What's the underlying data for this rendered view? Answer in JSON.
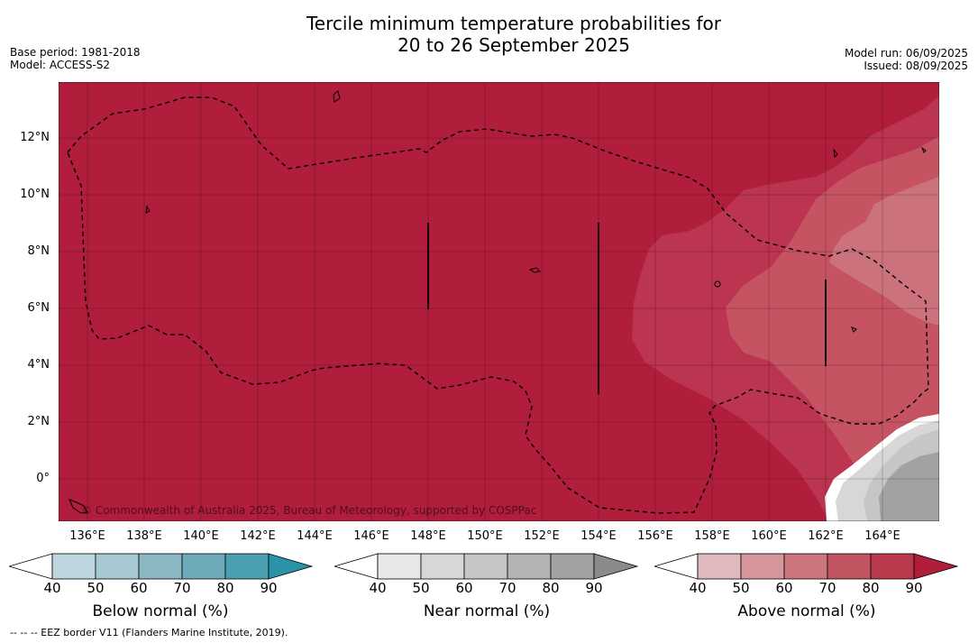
{
  "title_line1": "Tercile minimum temperature probabilities for",
  "title_line2": "20 to 26 September 2025",
  "meta_left": {
    "base_period": "Base period: 1981-2018",
    "model": "Model: ACCESS-S2"
  },
  "meta_right": {
    "model_run": "Model run: 06/09/2025",
    "issued": "Issued: 08/09/2025"
  },
  "map": {
    "lat_labels": [
      "12°N",
      "10°N",
      "8°N",
      "6°N",
      "4°N",
      "2°N",
      "0°"
    ],
    "lon_labels": [
      "136°E",
      "138°E",
      "140°E",
      "142°E",
      "144°E",
      "146°E",
      "148°E",
      "150°E",
      "152°E",
      "154°E",
      "156°E",
      "158°E",
      "160°E",
      "162°E",
      "164°E"
    ],
    "copyright": "© Commonwealth of Australia 2025, Bureau of Meteorology, supported by COSPPac",
    "colors": {
      "above_90": "#b01e3c",
      "above_80": "#bb3450",
      "above_70": "#c55362",
      "above_60": "#cc727c"
    }
  },
  "legends": [
    {
      "title": "Below normal (%)",
      "ticks": [
        "40",
        "50",
        "60",
        "70",
        "80",
        "90"
      ],
      "colors": [
        "#bed6de",
        "#a6c9d1",
        "#8cb8c4",
        "#6eaab9",
        "#4a9fb0",
        "#2b93a8"
      ]
    },
    {
      "title": "Near normal (%)",
      "ticks": [
        "40",
        "50",
        "60",
        "70",
        "80",
        "90"
      ],
      "colors": [
        "#e7e7e7",
        "#d7d7d7",
        "#c6c6c6",
        "#b3b3b3",
        "#a2a2a2",
        "#8a8a8a"
      ]
    },
    {
      "title": "Above normal (%)",
      "ticks": [
        "40",
        "50",
        "60",
        "70",
        "80",
        "90"
      ],
      "colors": [
        "#e0b9bf",
        "#d7959c",
        "#cd757d",
        "#c35562",
        "#b93a4c",
        "#b01e3c"
      ]
    }
  ],
  "footnote": "--  --  -- EEZ border V11 (Flanders Marine Institute, 2019)."
}
